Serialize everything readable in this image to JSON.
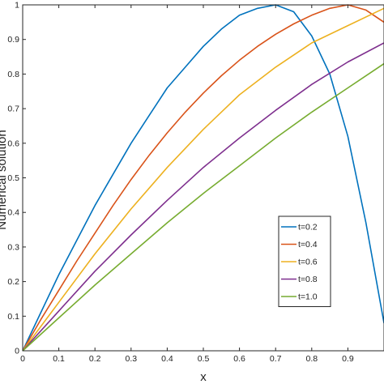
{
  "chart_data": {
    "type": "line",
    "title": "",
    "xlabel": "x",
    "ylabel": "Numerical solution",
    "xlim": [
      0,
      1
    ],
    "ylim": [
      0,
      1
    ],
    "xticks": [
      "0",
      "0.1",
      "0.2",
      "0.3",
      "0.4",
      "0.5",
      "0.6",
      "0.7",
      "0.8",
      "0.9"
    ],
    "yticks": [
      "0",
      "0.1",
      "0.2",
      "0.3",
      "0.4",
      "0.5",
      "0.6",
      "0.7",
      "0.8",
      "0.9",
      "1"
    ],
    "grid": false,
    "legend_position": "lower-right",
    "series": [
      {
        "name": "t=0.2",
        "color": "#0072BD",
        "x": [
          0,
          0.05,
          0.1,
          0.15,
          0.2,
          0.25,
          0.3,
          0.35,
          0.4,
          0.45,
          0.5,
          0.55,
          0.6,
          0.65,
          0.7,
          0.75,
          0.8,
          0.85,
          0.9,
          0.95,
          1.0
        ],
        "y": [
          0,
          0.11,
          0.22,
          0.32,
          0.42,
          0.51,
          0.6,
          0.68,
          0.76,
          0.82,
          0.88,
          0.93,
          0.97,
          0.99,
          1.0,
          0.98,
          0.91,
          0.8,
          0.62,
          0.37,
          0.08
        ]
      },
      {
        "name": "t=0.4",
        "color": "#D95319",
        "x": [
          0,
          0.05,
          0.1,
          0.15,
          0.2,
          0.25,
          0.3,
          0.35,
          0.4,
          0.45,
          0.5,
          0.55,
          0.6,
          0.65,
          0.7,
          0.75,
          0.8,
          0.85,
          0.9,
          0.95,
          1.0
        ],
        "y": [
          0,
          0.09,
          0.175,
          0.26,
          0.34,
          0.42,
          0.495,
          0.565,
          0.63,
          0.69,
          0.745,
          0.795,
          0.84,
          0.88,
          0.915,
          0.945,
          0.97,
          0.99,
          1.0,
          0.985,
          0.95
        ]
      },
      {
        "name": "t=0.6",
        "color": "#EDB120",
        "x": [
          0,
          0.1,
          0.2,
          0.3,
          0.4,
          0.5,
          0.6,
          0.7,
          0.8,
          0.9,
          1.0
        ],
        "y": [
          0,
          0.14,
          0.28,
          0.41,
          0.53,
          0.64,
          0.74,
          0.82,
          0.89,
          0.94,
          0.99
        ]
      },
      {
        "name": "t=0.8",
        "color": "#7E2F8E",
        "x": [
          0,
          0.1,
          0.2,
          0.3,
          0.4,
          0.5,
          0.6,
          0.7,
          0.8,
          0.9,
          1.0
        ],
        "y": [
          0,
          0.115,
          0.23,
          0.335,
          0.435,
          0.53,
          0.615,
          0.695,
          0.77,
          0.835,
          0.89
        ]
      },
      {
        "name": "t=1.0",
        "color": "#77AC30",
        "x": [
          0,
          0.1,
          0.2,
          0.3,
          0.4,
          0.5,
          0.6,
          0.7,
          0.8,
          0.9,
          1.0
        ],
        "y": [
          0,
          0.095,
          0.19,
          0.28,
          0.37,
          0.455,
          0.535,
          0.615,
          0.69,
          0.76,
          0.83
        ]
      }
    ]
  }
}
